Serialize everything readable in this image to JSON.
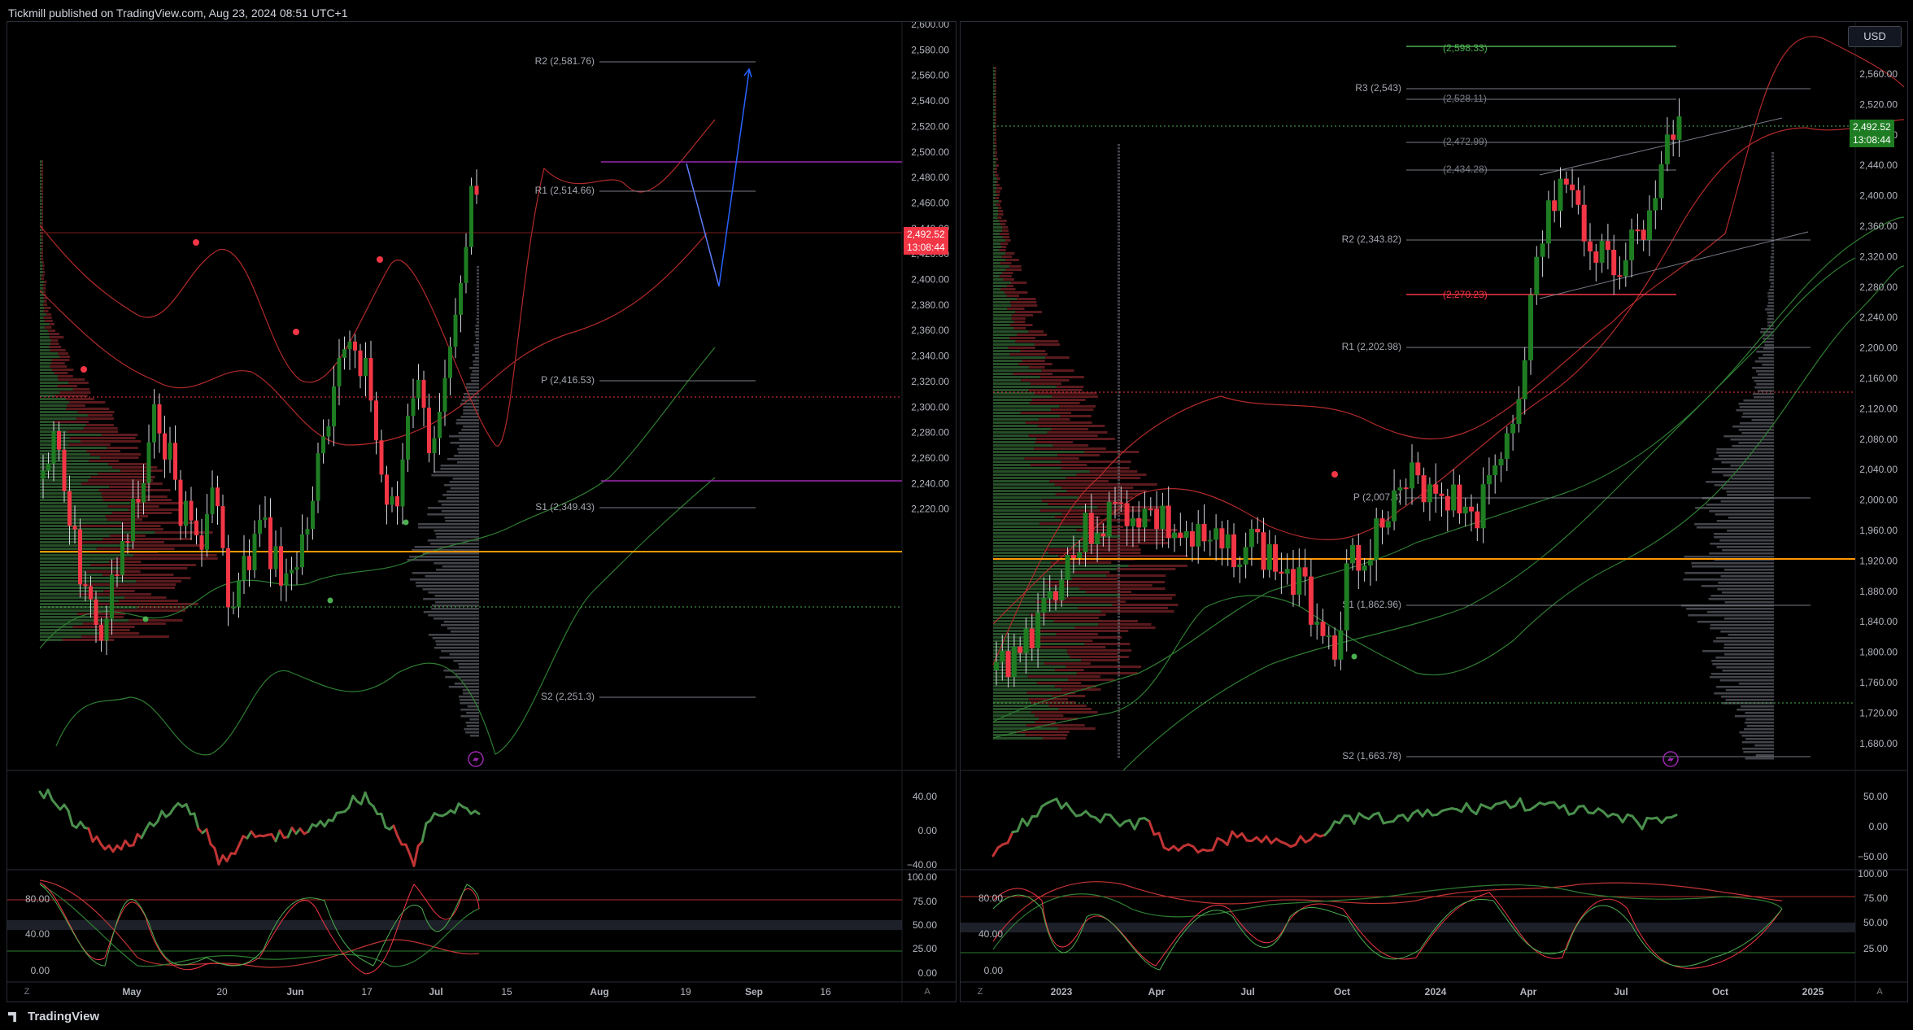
{
  "header": {
    "publisher": "Tickmill published on TradingView.com, Aug 23, 2024 08:51 UTC+1"
  },
  "footer": {
    "brand": "TradingView"
  },
  "currency_button": "USD",
  "colors": {
    "up": "#1e7d22",
    "down": "#f23645",
    "bg": "#000000",
    "grid": "#1c1f26",
    "axis_text": "#b2b5be",
    "pivot_line": "#787b86",
    "orange": "#ff9800",
    "purple": "#9c27b0"
  },
  "icons": [
    "lightning-icon",
    "z-scale-icon",
    "auto-scale-icon",
    "tradingview-logo-icon"
  ],
  "left_chart": {
    "timeframe_axis": [
      "May",
      "20",
      "Jun",
      "17",
      "Jul",
      "15",
      "Aug",
      "19",
      "Sep",
      "16"
    ],
    "price_axis": [
      "2,600.00",
      "2,580.00",
      "2,560.00",
      "2,540.00",
      "2,520.00",
      "2,500.00",
      "2,480.00",
      "2,460.00",
      "2,440.00",
      "2,420.00",
      "2,400.00",
      "2,380.00",
      "2,360.00",
      "2,340.00",
      "2,320.00",
      "2,300.00",
      "2,280.00",
      "2,260.00",
      "2,240.00",
      "2,220.00"
    ],
    "last_price": "2,492.52",
    "countdown": "13:08:44",
    "pivots": {
      "r2": "R2 (2,581.76)",
      "r1": "R1 (2,514.66)",
      "p": "P (2,416.53)",
      "s1": "S1 (2,349.43)",
      "s2": "S2 (2,251.3)"
    },
    "osc1_axis": [
      "40.00",
      "0.00",
      "−40.00"
    ],
    "osc2_axis_left": [
      "80.00",
      "40.00",
      "0.00"
    ],
    "osc2_axis_right": [
      "100.00",
      "75.00",
      "50.00",
      "25.00",
      "0.00"
    ],
    "scale_buttons": [
      "Z",
      "A"
    ]
  },
  "right_chart": {
    "timeframe_axis": [
      "2023",
      "Apr",
      "Jul",
      "Oct",
      "2024",
      "Apr",
      "Jul",
      "Oct",
      "2025"
    ],
    "price_axis": [
      "2,560.00",
      "2,520.00",
      "2,480.00",
      "2,440.00",
      "2,400.00",
      "2,360.00",
      "2,320.00",
      "2,280.00",
      "2,240.00",
      "2,200.00",
      "2,160.00",
      "2,120.00",
      "2,080.00",
      "2,040.00",
      "2,000.00",
      "1,960.00",
      "1,920.00",
      "1,880.00",
      "1,840.00",
      "1,800.00",
      "1,760.00",
      "1,720.00",
      "1,680.00"
    ],
    "last_price": "2,492.52",
    "countdown": "13:08:44",
    "pivots": {
      "r3": "R3 (2,543)",
      "r2": "R2 (2,343.82)",
      "r1": "R1 (2,202.98)",
      "p": "P (2,007.8)",
      "s1": "S1 (1,862.96)",
      "s2": "S2 (1,663.78)"
    },
    "levels": {
      "l1": "(2,598.33)",
      "l2": "(2,528.11)",
      "l3": "(2,472.99)",
      "l4": "(2,434.28)",
      "l5": "(2,270.23)"
    },
    "osc1_axis": [
      "50.00",
      "0.00",
      "−50.00"
    ],
    "osc2_axis_left": [
      "80.00",
      "40.00",
      "0.00"
    ],
    "osc2_axis_right": [
      "100.00",
      "75.00",
      "50.00",
      "25.00"
    ],
    "scale_buttons": [
      "Z",
      "A"
    ]
  }
}
